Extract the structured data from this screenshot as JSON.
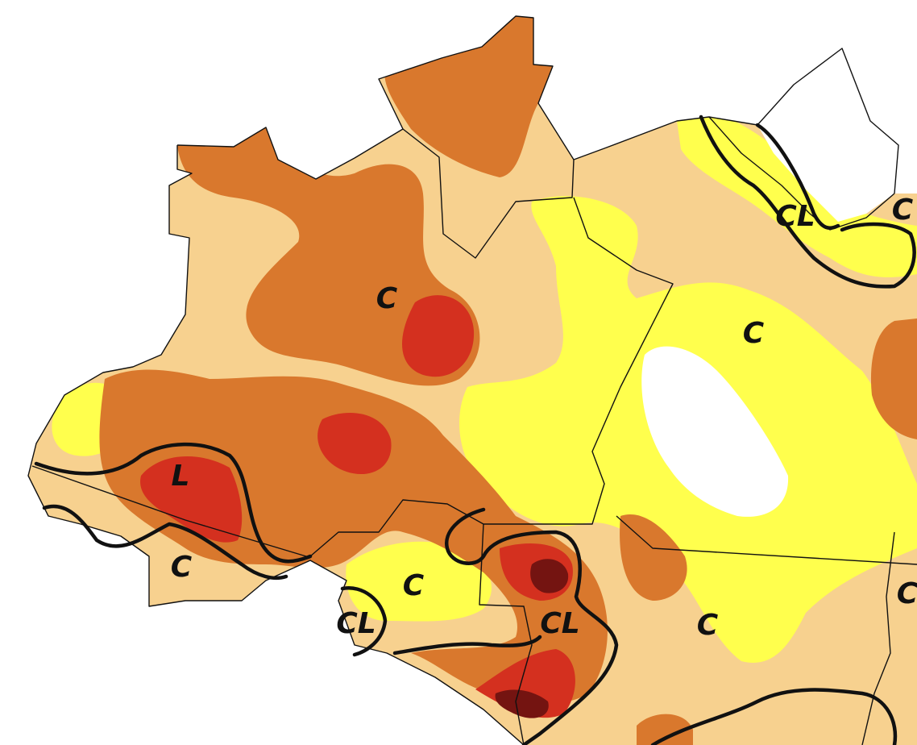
{
  "map": {
    "colors": {
      "background": "#ffffff",
      "none": "#ffffff",
      "d0": "#ffff4d",
      "d1": "#f7d18f",
      "d2": "#d9782d",
      "d3": "#d4301f",
      "d4": "#741411",
      "boundary": "#111111"
    },
    "labels": [
      {
        "id": "c1",
        "text": "C"
      },
      {
        "id": "c2",
        "text": "C"
      },
      {
        "id": "l1",
        "text": "L"
      },
      {
        "id": "c3",
        "text": "C"
      },
      {
        "id": "c4",
        "text": "C"
      },
      {
        "id": "cl1",
        "text": "CL"
      },
      {
        "id": "cl2",
        "text": "CL"
      },
      {
        "id": "c5",
        "text": "C"
      },
      {
        "id": "cl3",
        "text": "CL"
      },
      {
        "id": "c6",
        "text": "C"
      },
      {
        "id": "c7",
        "text": "C"
      }
    ]
  }
}
